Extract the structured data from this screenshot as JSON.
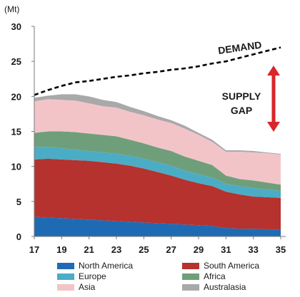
{
  "chart_data": {
    "type": "area",
    "unit_label": "(Mt)",
    "x": [
      17,
      18,
      19,
      20,
      21,
      22,
      23,
      24,
      25,
      26,
      27,
      28,
      29,
      30,
      31,
      32,
      33,
      34,
      35
    ],
    "x_tick_labels": [
      "17",
      "19",
      "21",
      "23",
      "25",
      "27",
      "29",
      "31",
      "33",
      "35"
    ],
    "y_tick_labels": [
      "0",
      "5",
      "10",
      "15",
      "20",
      "25",
      "30"
    ],
    "ylim": [
      0,
      30
    ],
    "grid": false,
    "stacked": true,
    "series": [
      {
        "name": "North America",
        "color": "#1f6bb3",
        "values": [
          2.8,
          2.7,
          2.6,
          2.5,
          2.4,
          2.3,
          2.2,
          2.1,
          2.0,
          1.9,
          1.8,
          1.7,
          1.6,
          1.5,
          1.2,
          1.1,
          1.1,
          1.0,
          1.0
        ]
      },
      {
        "name": "South America",
        "color": "#b5322e",
        "values": [
          8.2,
          8.4,
          8.4,
          8.4,
          8.4,
          8.3,
          8.2,
          8.0,
          7.7,
          7.3,
          6.9,
          6.4,
          6.0,
          5.7,
          5.2,
          4.9,
          4.6,
          4.6,
          4.5
        ]
      },
      {
        "name": "Europe",
        "color": "#4bacc6",
        "values": [
          1.8,
          1.7,
          1.6,
          1.5,
          1.4,
          1.4,
          1.4,
          1.4,
          1.4,
          1.4,
          1.4,
          1.3,
          1.3,
          1.2,
          1.1,
          1.2,
          1.2,
          1.1,
          1.0
        ]
      },
      {
        "name": "Africa",
        "color": "#6f9f7a",
        "values": [
          2.0,
          2.2,
          2.4,
          2.5,
          2.5,
          2.5,
          2.5,
          2.3,
          2.2,
          2.1,
          2.1,
          2.0,
          1.9,
          1.8,
          1.2,
          1.0,
          1.1,
          1.0,
          0.9
        ]
      },
      {
        "name": "Asia",
        "color": "#f2c4c8",
        "values": [
          4.5,
          4.6,
          4.5,
          4.5,
          4.3,
          4.1,
          4.1,
          4.0,
          4.0,
          4.0,
          4.0,
          4.0,
          3.7,
          3.3,
          3.4,
          3.9,
          4.0,
          4.2,
          4.3
        ]
      },
      {
        "name": "Australasia",
        "color": "#a9a9a9",
        "values": [
          0.5,
          0.5,
          0.8,
          0.9,
          1.0,
          0.9,
          0.8,
          0.7,
          0.6,
          0.5,
          0.4,
          0.4,
          0.3,
          0.3,
          0.2,
          0.2,
          0.2,
          0.1,
          0.1
        ]
      }
    ],
    "demand": {
      "values": [
        20.2,
        20.9,
        21.5,
        22.0,
        22.2,
        22.5,
        22.8,
        23.0,
        23.3,
        23.5,
        23.8,
        24.0,
        24.3,
        24.7,
        25.0,
        25.5,
        26.0,
        26.5,
        27.0
      ]
    },
    "annotations": {
      "demand": "DEMAND",
      "supply_gap_line1": "SUPPLY",
      "supply_gap_line2": "GAP"
    }
  }
}
